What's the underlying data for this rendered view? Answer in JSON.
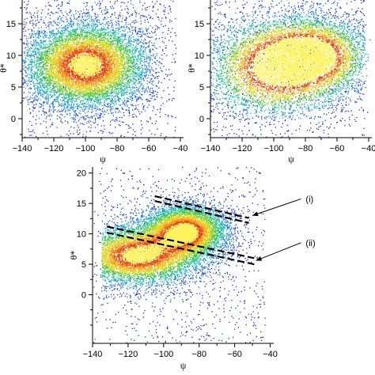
{
  "chart_data": [
    {
      "id": "top-left",
      "type": "scatter",
      "title": "",
      "xlabel": "ψ",
      "ylabel": "θ*",
      "xlim": [
        -140,
        -38
      ],
      "ylim": [
        -3,
        19
      ],
      "x_ticks": [
        -140,
        -120,
        -100,
        -80,
        -60,
        -40
      ],
      "y_ticks": [
        0,
        5,
        10,
        15
      ],
      "grid": false,
      "density_clusters": [
        {
          "center_x": -100,
          "center_y": 8.5,
          "spread_x": 20,
          "spread_y": 3.5,
          "peak": "orange",
          "x_range": [
            -140,
            -58
          ],
          "y_range": [
            0,
            19
          ]
        }
      ]
    },
    {
      "id": "top-right",
      "type": "scatter",
      "title": "",
      "xlabel": "ψ",
      "ylabel": "θ*",
      "xlim": [
        -140,
        -38
      ],
      "ylim": [
        -3,
        19
      ],
      "x_ticks": [
        -140,
        -120,
        -100,
        -80,
        -60,
        -40
      ],
      "y_ticks": [
        0,
        5,
        10,
        15
      ],
      "grid": false,
      "density_clusters": [
        {
          "center_x": -75,
          "center_y": 10,
          "spread_x": 18,
          "spread_y": 3,
          "peak": "red",
          "x_range": [
            -140,
            -45
          ],
          "y_range": [
            1,
            19
          ]
        },
        {
          "center_x": -100,
          "center_y": 8,
          "spread_x": 22,
          "spread_y": 4,
          "peak": "yellow",
          "x_range": [
            -140,
            -45
          ],
          "y_range": [
            1,
            19
          ]
        }
      ]
    },
    {
      "id": "bottom",
      "type": "scatter",
      "title": "",
      "xlabel": "ψ",
      "ylabel": "θ*",
      "xlim": [
        -140,
        -38
      ],
      "ylim": [
        -8,
        21
      ],
      "x_ticks": [
        -140,
        -120,
        -100,
        -80,
        -60,
        -40
      ],
      "y_ticks": [
        0,
        5,
        10,
        15,
        20
      ],
      "grid": false,
      "density_clusters": [
        {
          "center_x": -88,
          "center_y": 10.5,
          "spread_x": 12,
          "spread_y": 2.2,
          "peak": "yellow",
          "x_range": [
            -135,
            -45
          ],
          "y_range": [
            -2,
            18
          ]
        },
        {
          "center_x": -115,
          "center_y": 6.5,
          "spread_x": 18,
          "spread_y": 2.5,
          "peak": "orange",
          "x_range": [
            -135,
            -45
          ],
          "y_range": [
            -2,
            18
          ]
        }
      ],
      "dashed_lines": [
        {
          "label": "(i)",
          "x": [
            -105,
            -52
          ],
          "y": [
            16.2,
            12.6
          ]
        },
        {
          "label": "(i)",
          "x": [
            -105,
            -52
          ],
          "y": [
            15.4,
            11.8
          ]
        },
        {
          "label": "(ii)",
          "x": [
            -132,
            -49
          ],
          "y": [
            11.2,
            6.0
          ]
        },
        {
          "label": "(ii)",
          "x": [
            -132,
            -49
          ],
          "y": [
            10.2,
            5.0
          ]
        }
      ],
      "annotations": [
        {
          "text": "(i)",
          "x": -20,
          "y": 16.0,
          "arrow_to": [
            -50,
            13.0
          ]
        },
        {
          "text": "(ii)",
          "x": -20,
          "y": 8.8,
          "arrow_to": [
            -48,
            5.6
          ]
        }
      ]
    }
  ]
}
